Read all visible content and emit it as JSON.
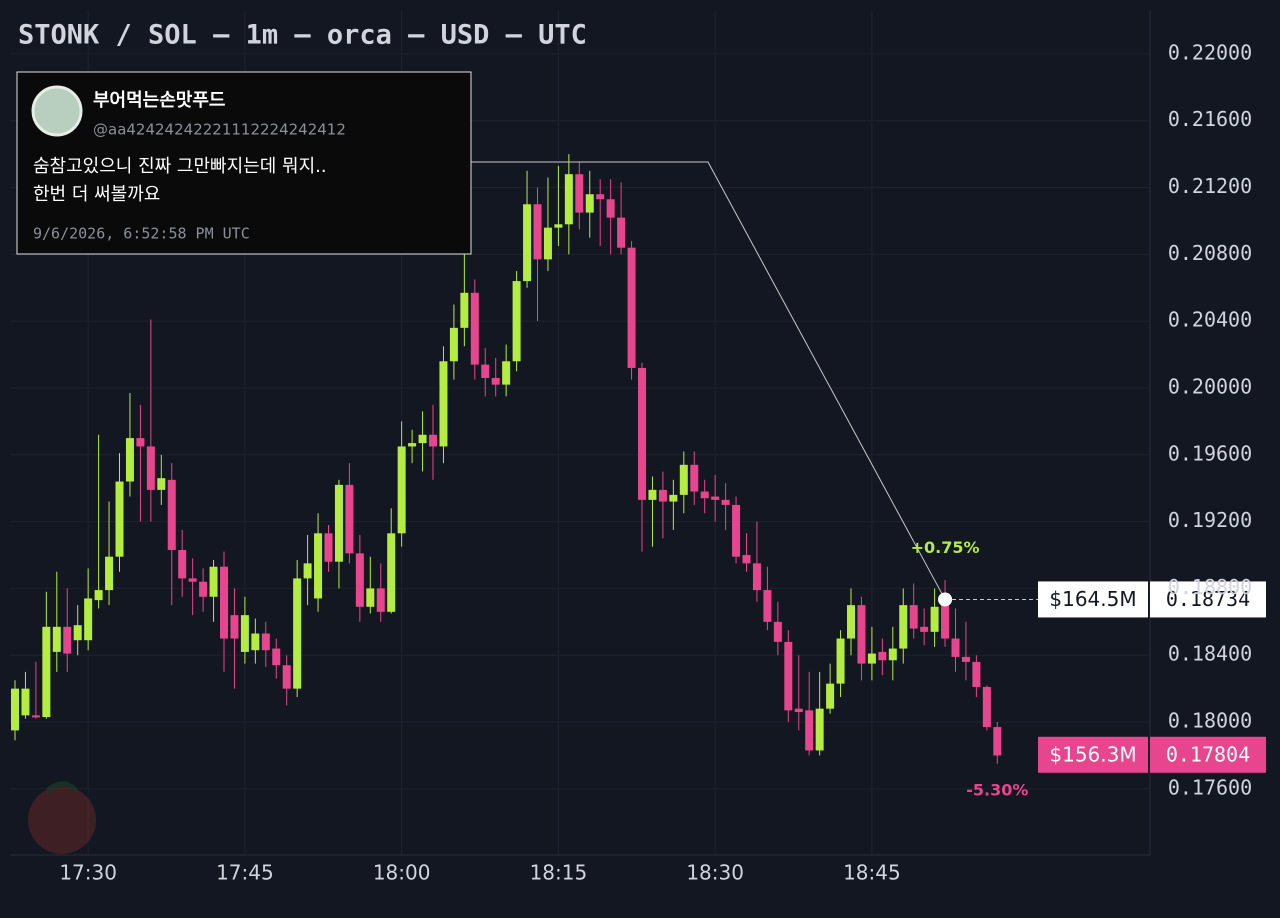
{
  "chart_data": {
    "type": "candlestick",
    "title": "STONK / SOL — 1m — orca — USD — UTC",
    "up_color": "#b4ec3f",
    "down_color": "#e8458f",
    "x": [
      "17:23",
      "17:24",
      "17:25",
      "17:26",
      "17:27",
      "17:28",
      "17:29",
      "17:30",
      "17:31",
      "17:32",
      "17:33",
      "17:34",
      "17:35",
      "17:36",
      "17:37",
      "17:38",
      "17:39",
      "17:40",
      "17:41",
      "17:42",
      "17:43",
      "17:44",
      "17:45",
      "17:46",
      "17:47",
      "17:48",
      "17:49",
      "17:50",
      "17:51",
      "17:52",
      "17:53",
      "17:54",
      "17:55",
      "17:56",
      "17:57",
      "17:58",
      "17:59",
      "18:00",
      "18:01",
      "18:02",
      "18:03",
      "18:04",
      "18:05",
      "18:06",
      "18:07",
      "18:08",
      "18:09",
      "18:10",
      "18:11",
      "18:12",
      "18:13",
      "18:14",
      "18:15",
      "18:16",
      "18:17",
      "18:18",
      "18:19",
      "18:20",
      "18:21",
      "18:22",
      "18:23",
      "18:24",
      "18:25",
      "18:26",
      "18:27",
      "18:28",
      "18:29",
      "18:30",
      "18:31",
      "18:32",
      "18:33",
      "18:34",
      "18:35",
      "18:36",
      "18:37",
      "18:38",
      "18:39",
      "18:40",
      "18:41",
      "18:42",
      "18:43",
      "18:44",
      "18:45",
      "18:46",
      "18:47",
      "18:48",
      "18:49",
      "18:50",
      "18:51",
      "18:52",
      "18:53",
      "18:54",
      "18:55",
      "18:56",
      "18:57"
    ],
    "open": [
      0.1795,
      0.1804,
      0.1804,
      0.1803,
      0.1842,
      0.1857,
      0.1849,
      0.1849,
      0.1873,
      0.1879,
      0.1899,
      0.1944,
      0.197,
      0.1965,
      0.1939,
      0.1945,
      0.1903,
      0.1886,
      0.1884,
      0.1875,
      0.1893,
      0.1864,
      0.1842,
      0.1843,
      0.1853,
      0.1844,
      0.1834,
      0.182,
      0.1886,
      0.1874,
      0.1913,
      0.1896,
      0.1942,
      0.1901,
      0.1869,
      0.188,
      0.1866,
      0.1913,
      0.1965,
      0.1967,
      0.1972,
      0.1965,
      0.2016,
      0.2036,
      0.2057,
      0.2014,
      0.2006,
      0.2002,
      0.2016,
      0.2064,
      0.211,
      0.2077,
      0.2096,
      0.2098,
      0.2128,
      0.2105,
      0.2116,
      0.2113,
      0.2102,
      0.2084,
      0.2012,
      0.1933,
      0.1939,
      0.1932,
      0.1936,
      0.1954,
      0.1938,
      0.1935,
      0.1933,
      0.193,
      0.19,
      0.1895,
      0.1879,
      0.186,
      0.1848,
      0.1808,
      0.1807,
      0.1783,
      0.1808,
      0.1823,
      0.185,
      0.187,
      0.1835,
      0.1842,
      0.1837,
      0.1844,
      0.187,
      0.1857,
      0.1854,
      0.1873,
      0.185,
      0.1839,
      0.1836,
      0.1821,
      0.1797
    ],
    "high": [
      0.1825,
      0.183,
      0.1836,
      0.1878,
      0.189,
      0.188,
      0.187,
      0.1892,
      0.1972,
      0.1932,
      0.1961,
      0.1997,
      0.199,
      0.2041,
      0.196,
      0.1955,
      0.1915,
      0.1898,
      0.1892,
      0.1897,
      0.1902,
      0.188,
      0.1875,
      0.1862,
      0.186,
      0.185,
      0.184,
      0.1897,
      0.1912,
      0.1925,
      0.1918,
      0.1945,
      0.1955,
      0.1912,
      0.1899,
      0.1895,
      0.1928,
      0.198,
      0.1975,
      0.1986,
      0.199,
      0.2025,
      0.205,
      0.208,
      0.2065,
      0.2024,
      0.2018,
      0.2026,
      0.207,
      0.213,
      0.212,
      0.2126,
      0.2133,
      0.214,
      0.2135,
      0.213,
      0.2125,
      0.2125,
      0.2123,
      0.2088,
      0.2015,
      0.1947,
      0.195,
      0.1945,
      0.1962,
      0.1962,
      0.1945,
      0.1948,
      0.1943,
      0.1935,
      0.1913,
      0.192,
      0.1893,
      0.1872,
      0.1855,
      0.184,
      0.183,
      0.183,
      0.1835,
      0.1855,
      0.188,
      0.1875,
      0.1857,
      0.185,
      0.1857,
      0.188,
      0.1883,
      0.1868,
      0.188,
      0.1885,
      0.1868,
      0.186,
      0.184,
      0.1822,
      0.18
    ],
    "low": [
      0.1789,
      0.1802,
      0.1802,
      0.1802,
      0.183,
      0.183,
      0.184,
      0.1843,
      0.1868,
      0.187,
      0.189,
      0.1935,
      0.192,
      0.192,
      0.193,
      0.187,
      0.1875,
      0.1864,
      0.1866,
      0.186,
      0.183,
      0.182,
      0.1835,
      0.1835,
      0.1833,
      0.1826,
      0.181,
      0.1815,
      0.187,
      0.1866,
      0.189,
      0.188,
      0.1895,
      0.186,
      0.1865,
      0.186,
      0.1865,
      0.1905,
      0.1955,
      0.195,
      0.1945,
      0.1955,
      0.2005,
      0.2025,
      0.2005,
      0.1995,
      0.1995,
      0.1995,
      0.201,
      0.206,
      0.204,
      0.207,
      0.2085,
      0.208,
      0.2095,
      0.209,
      0.2085,
      0.208,
      0.208,
      0.2005,
      0.1902,
      0.1905,
      0.191,
      0.1915,
      0.1925,
      0.193,
      0.1925,
      0.192,
      0.1915,
      0.1895,
      0.189,
      0.1872,
      0.1855,
      0.184,
      0.18,
      0.1795,
      0.178,
      0.178,
      0.1805,
      0.1815,
      0.184,
      0.1825,
      0.1825,
      0.1828,
      0.1825,
      0.1835,
      0.185,
      0.1846,
      0.1845,
      0.1845,
      0.183,
      0.1825,
      0.1815,
      0.1795,
      0.1775
    ],
    "close": [
      0.182,
      0.182,
      0.1803,
      0.1857,
      0.1857,
      0.1841,
      0.1858,
      0.1874,
      0.1879,
      0.1899,
      0.1944,
      0.197,
      0.1965,
      0.1939,
      0.1946,
      0.1903,
      0.1886,
      0.1884,
      0.1875,
      0.1893,
      0.185,
      0.185,
      0.1864,
      0.1853,
      0.1843,
      0.1834,
      0.182,
      0.1886,
      0.1895,
      0.1913,
      0.1896,
      0.1942,
      0.1901,
      0.1869,
      0.188,
      0.1866,
      0.1913,
      0.1965,
      0.1967,
      0.1972,
      0.1965,
      0.2016,
      0.2036,
      0.2057,
      0.2014,
      0.2006,
      0.2002,
      0.2016,
      0.2064,
      0.211,
      0.2077,
      0.2096,
      0.2098,
      0.2128,
      0.2105,
      0.2116,
      0.2113,
      0.2102,
      0.2084,
      0.2012,
      0.1933,
      0.1939,
      0.1932,
      0.1936,
      0.1954,
      0.1938,
      0.1934,
      0.1933,
      0.193,
      0.1899,
      0.1895,
      0.1879,
      0.186,
      0.1848,
      0.1807,
      0.1806,
      0.1783,
      0.1808,
      0.1823,
      0.185,
      0.187,
      0.1835,
      0.1841,
      0.1837,
      0.1844,
      0.187,
      0.1856,
      0.1854,
      0.1869,
      0.185,
      0.1839,
      0.1836,
      0.1821,
      0.1797,
      0.178
    ],
    "ylim": [
      0.17204,
      0.22263
    ],
    "yticks": [
      {
        "value": 0.22,
        "label": "0.22000"
      },
      {
        "value": 0.216,
        "label": "0.21600"
      },
      {
        "value": 0.212,
        "label": "0.21200"
      },
      {
        "value": 0.208,
        "label": "0.20800"
      },
      {
        "value": 0.204,
        "label": "0.20400"
      },
      {
        "value": 0.2,
        "label": "0.20000"
      },
      {
        "value": 0.196,
        "label": "0.19600"
      },
      {
        "value": 0.192,
        "label": "0.19200"
      },
      {
        "value": 0.188,
        "label": "0.18800"
      },
      {
        "value": 0.184,
        "label": "0.18400"
      },
      {
        "value": 0.18,
        "label": "0.18000"
      },
      {
        "value": 0.176,
        "label": "0.17600"
      }
    ],
    "xticks": [
      "17:30",
      "17:45",
      "18:00",
      "18:15",
      "18:30",
      "18:45"
    ],
    "grid": true,
    "annotation": {
      "name": "부어먹는손맛푸드",
      "handle": "@aa42424242221112224242412",
      "text": [
        "숨참고있으니 진짜 그만빠지는데 뭐지..",
        "한번 더 써볼까요"
      ],
      "date": "9/6/2026, 6:52:58 PM UTC",
      "x": "18:52",
      "value": 0.18734,
      "market_cap": "$164.5M",
      "change": "+0.75%"
    },
    "last": {
      "value": 0.17804,
      "market_cap": "$156.3M",
      "change": "-5.30%"
    }
  }
}
